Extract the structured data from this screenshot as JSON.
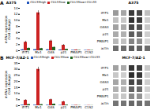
{
  "chart_data": [
    {
      "type": "bar",
      "title": "A375",
      "annotations": [
        "A"
      ],
      "ylabel": "mRNA expression\n(fold change)",
      "categories": [
        "IFIT1",
        "Mx1",
        "OAS",
        "p21",
        "PMAIP1",
        "C1S2"
      ],
      "series": [
        {
          "name": "CD133high",
          "color": "#2255bb",
          "values": [
            0.3,
            0.35,
            0.3,
            0.25,
            0.15,
            0.12
          ],
          "errors": [
            0.08,
            0.08,
            0.08,
            0.05,
            0.04,
            0.03
          ]
        },
        {
          "name": "CD133low",
          "color": "#cc2222",
          "values": [
            2.8,
            12.5,
            3.2,
            1.8,
            0.25,
            0.18
          ],
          "errors": [
            0.35,
            0.7,
            0.35,
            0.25,
            0.07,
            0.05
          ]
        },
        {
          "name": "CD133low+CD133",
          "color": "#226622",
          "values": [
            0.8,
            0.7,
            1.1,
            0.45,
            0.12,
            0.1
          ],
          "errors": [
            0.12,
            0.1,
            0.15,
            0.07,
            0.03,
            0.03
          ]
        }
      ],
      "ylim": [
        0,
        14
      ],
      "yticks": [
        0,
        2,
        4,
        6,
        8,
        10,
        12,
        14
      ],
      "grid": false,
      "legend": "top-right"
    },
    {
      "type": "heatmap",
      "title": "A375",
      "categories": [
        null,
        null,
        null,
        null,
        null
      ],
      "y": [
        "IFIT1",
        "Mx1",
        "OAS3",
        "p21",
        "PMAIP1",
        "actin"
      ],
      "cells": [
        [
          0.45,
          0.4,
          0.88,
          0.82,
          0.28
        ],
        [
          0.28,
          0.25,
          0.92,
          0.88,
          0.22
        ],
        [
          0.42,
          0.38,
          0.82,
          0.78,
          0.25
        ],
        [
          0.38,
          0.35,
          0.72,
          0.68,
          0.22
        ],
        [
          0.32,
          0.28,
          0.55,
          0.5,
          0.18
        ],
        [
          0.65,
          0.65,
          0.72,
          0.7,
          0.65
        ]
      ],
      "tick_labels": "y"
    },
    {
      "type": "bar",
      "title": "MCF-7/AZ-1",
      "annotations": [
        "B"
      ],
      "ylabel": "mRNA expression\n(fold change)",
      "categories": [
        "IFIT1",
        "Mx1",
        "OAS",
        "p21",
        "PMAIP1",
        "C1S2"
      ],
      "series": [
        {
          "name": "CD133high",
          "color": "#2255bb",
          "values": [
            0.5,
            0.5,
            0.4,
            0.3,
            0.18,
            0.12
          ],
          "errors": [
            0.1,
            0.12,
            0.09,
            0.07,
            0.05,
            0.04
          ]
        },
        {
          "name": "CD133low",
          "color": "#cc2222",
          "values": [
            4.5,
            30.0,
            5.0,
            3.2,
            0.35,
            0.22
          ],
          "errors": [
            0.55,
            1.8,
            0.6,
            0.45,
            0.09,
            0.07
          ]
        },
        {
          "name": "CD133low+CD133",
          "color": "#226622",
          "values": [
            1.0,
            0.9,
            1.3,
            0.55,
            0.15,
            0.12
          ],
          "errors": [
            0.18,
            0.13,
            0.22,
            0.09,
            0.04,
            0.03
          ]
        }
      ],
      "ylim": [
        0,
        35
      ],
      "yticks": [
        0,
        5,
        10,
        15,
        20,
        25,
        30,
        35
      ],
      "grid": false,
      "legend": "top-right"
    },
    {
      "type": "heatmap",
      "title": "MCF-7/AZ-1",
      "categories": [
        null,
        null,
        null,
        null,
        null
      ],
      "y": [
        "IFIT1",
        "Mx1",
        "OAS3",
        "p21",
        "PMAIP1",
        "actin"
      ],
      "cells": [
        [
          0.42,
          0.38,
          0.9,
          0.85,
          0.25
        ],
        [
          0.25,
          0.22,
          0.93,
          0.9,
          0.2
        ],
        [
          0.4,
          0.36,
          0.83,
          0.8,
          0.22
        ],
        [
          0.35,
          0.32,
          0.7,
          0.65,
          0.2
        ],
        [
          0.28,
          0.25,
          0.52,
          0.48,
          0.16
        ],
        [
          0.62,
          0.62,
          0.68,
          0.66,
          0.62
        ]
      ],
      "tick_labels": "y"
    }
  ]
}
